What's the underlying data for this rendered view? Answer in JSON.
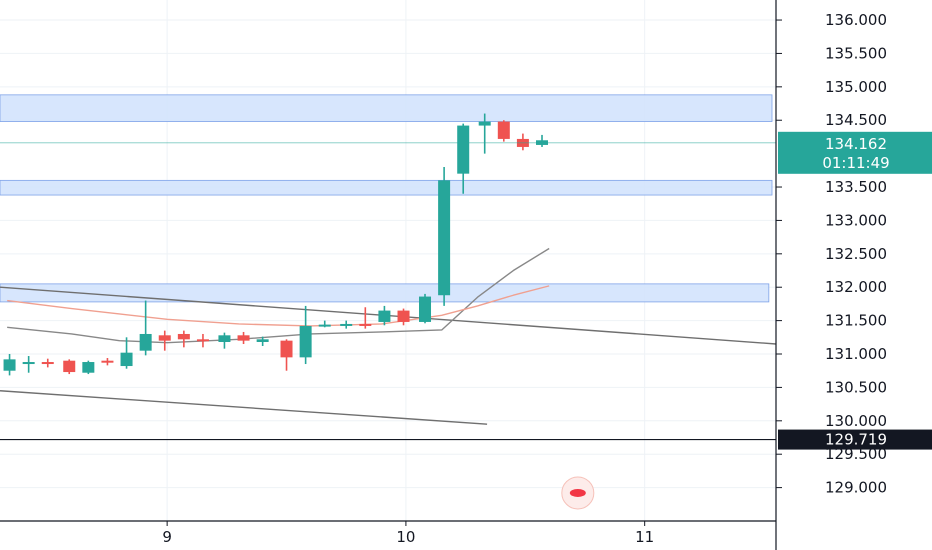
{
  "chart_data": {
    "type": "candlestick",
    "y_axis": {
      "ticks": [
        "136.000",
        "135.500",
        "135.000",
        "134.500",
        "133.500",
        "133.000",
        "132.500",
        "132.000",
        "131.500",
        "131.000",
        "130.500",
        "130.000",
        "129.500",
        "129.000"
      ],
      "ylim": [
        128.5,
        136.3
      ],
      "side": "right"
    },
    "x_axis": {
      "ticks": [
        {
          "label": "9",
          "x": 9
        },
        {
          "label": "10",
          "x": 10
        },
        {
          "label": "11",
          "x": 11
        }
      ],
      "xlim": [
        8.3,
        11.55
      ]
    },
    "candles": [
      {
        "x": 8.34,
        "o": 130.75,
        "h": 131.0,
        "l": 130.68,
        "c": 130.92
      },
      {
        "x": 8.42,
        "o": 130.85,
        "h": 130.97,
        "l": 130.72,
        "c": 130.88
      },
      {
        "x": 8.5,
        "o": 130.88,
        "h": 130.93,
        "l": 130.8,
        "c": 130.85
      },
      {
        "x": 8.59,
        "o": 130.9,
        "h": 130.92,
        "l": 130.7,
        "c": 130.73
      },
      {
        "x": 8.67,
        "o": 130.72,
        "h": 130.9,
        "l": 130.7,
        "c": 130.88
      },
      {
        "x": 8.75,
        "o": 130.9,
        "h": 130.94,
        "l": 130.83,
        "c": 130.88
      },
      {
        "x": 8.83,
        "o": 130.82,
        "h": 131.25,
        "l": 130.78,
        "c": 131.02
      },
      {
        "x": 8.91,
        "o": 131.05,
        "h": 131.8,
        "l": 130.98,
        "c": 131.3
      },
      {
        "x": 8.99,
        "o": 131.28,
        "h": 131.35,
        "l": 131.05,
        "c": 131.2
      },
      {
        "x": 9.07,
        "o": 131.3,
        "h": 131.35,
        "l": 131.1,
        "c": 131.22
      },
      {
        "x": 9.15,
        "o": 131.22,
        "h": 131.3,
        "l": 131.1,
        "c": 131.2
      },
      {
        "x": 9.24,
        "o": 131.18,
        "h": 131.32,
        "l": 131.08,
        "c": 131.28
      },
      {
        "x": 9.32,
        "o": 131.28,
        "h": 131.33,
        "l": 131.15,
        "c": 131.2
      },
      {
        "x": 9.4,
        "o": 131.18,
        "h": 131.26,
        "l": 131.12,
        "c": 131.22
      },
      {
        "x": 9.5,
        "o": 131.2,
        "h": 131.22,
        "l": 130.75,
        "c": 130.95
      },
      {
        "x": 9.58,
        "o": 130.95,
        "h": 131.72,
        "l": 130.85,
        "c": 131.42
      },
      {
        "x": 9.66,
        "o": 131.43,
        "h": 131.5,
        "l": 131.4,
        "c": 131.44
      },
      {
        "x": 9.75,
        "o": 131.42,
        "h": 131.5,
        "l": 131.38,
        "c": 131.45
      },
      {
        "x": 9.83,
        "o": 131.45,
        "h": 131.7,
        "l": 131.38,
        "c": 131.42
      },
      {
        "x": 9.91,
        "o": 131.48,
        "h": 131.72,
        "l": 131.43,
        "c": 131.65
      },
      {
        "x": 9.99,
        "o": 131.65,
        "h": 131.68,
        "l": 131.43,
        "c": 131.48
      },
      {
        "x": 10.08,
        "o": 131.48,
        "h": 131.9,
        "l": 131.46,
        "c": 131.86
      },
      {
        "x": 10.16,
        "o": 131.88,
        "h": 133.8,
        "l": 131.72,
        "c": 133.6
      },
      {
        "x": 10.24,
        "o": 133.7,
        "h": 134.45,
        "l": 133.4,
        "c": 134.42
      },
      {
        "x": 10.33,
        "o": 134.42,
        "h": 134.6,
        "l": 134.0,
        "c": 134.48
      },
      {
        "x": 10.41,
        "o": 134.48,
        "h": 134.5,
        "l": 134.18,
        "c": 134.22
      },
      {
        "x": 10.49,
        "o": 134.22,
        "h": 134.3,
        "l": 134.05,
        "c": 134.1
      },
      {
        "x": 10.57,
        "o": 134.13,
        "h": 134.28,
        "l": 134.1,
        "c": 134.2
      }
    ],
    "zones": [
      {
        "y0": 134.48,
        "y1": 134.88,
        "x0": 8.3,
        "x1": 11.55
      },
      {
        "y0": 133.38,
        "y1": 133.6,
        "x0": 8.3,
        "x1": 11.55
      },
      {
        "y0": 131.78,
        "y1": 132.05,
        "x0": 8.3,
        "x1": 11.52
      }
    ],
    "trendlines": [
      {
        "points": [
          [
            8.3,
            132.0
          ],
          [
            11.55,
            131.15
          ]
        ],
        "color": "#6f6f6f"
      },
      {
        "points": [
          [
            8.3,
            130.45
          ],
          [
            10.34,
            129.95
          ]
        ],
        "color": "#6f6f6f"
      }
    ],
    "moving_averages": [
      {
        "points": [
          [
            8.33,
            131.4
          ],
          [
            8.6,
            131.3
          ],
          [
            8.8,
            131.2
          ],
          [
            9.0,
            131.17
          ],
          [
            9.3,
            131.22
          ],
          [
            9.6,
            131.3
          ],
          [
            9.9,
            131.33
          ],
          [
            10.15,
            131.36
          ],
          [
            10.3,
            131.85
          ],
          [
            10.45,
            132.25
          ],
          [
            10.6,
            132.58
          ]
        ],
        "color": "#888888"
      },
      {
        "points": [
          [
            8.33,
            131.8
          ],
          [
            8.6,
            131.68
          ],
          [
            8.8,
            131.6
          ],
          [
            9.0,
            131.52
          ],
          [
            9.3,
            131.45
          ],
          [
            9.6,
            131.42
          ],
          [
            9.9,
            131.45
          ],
          [
            10.15,
            131.58
          ],
          [
            10.3,
            131.72
          ],
          [
            10.45,
            131.88
          ],
          [
            10.6,
            132.02
          ]
        ],
        "color": "#f0a090"
      }
    ],
    "price_lines": [
      {
        "value": 134.162,
        "color": "#26a69a"
      },
      {
        "value": 129.719,
        "color": "#131722"
      }
    ],
    "badges": [
      {
        "value": 134.162,
        "label": "134.162",
        "color": "#26a69a"
      },
      {
        "label": "01:11:49",
        "color": "#26a69a"
      },
      {
        "value": 129.719,
        "label": "129.719",
        "color": "#131722"
      }
    ],
    "alert_marker": {
      "x": 10.72,
      "y": 128.92,
      "color": "#f23645"
    },
    "colors": {
      "up": "#26a69a",
      "down": "#ef5350",
      "zone_fill": "#d3e3fd",
      "zone_stroke": "#7ea2e8",
      "grid": "#eef2f6",
      "axis_text": "#131722"
    }
  }
}
